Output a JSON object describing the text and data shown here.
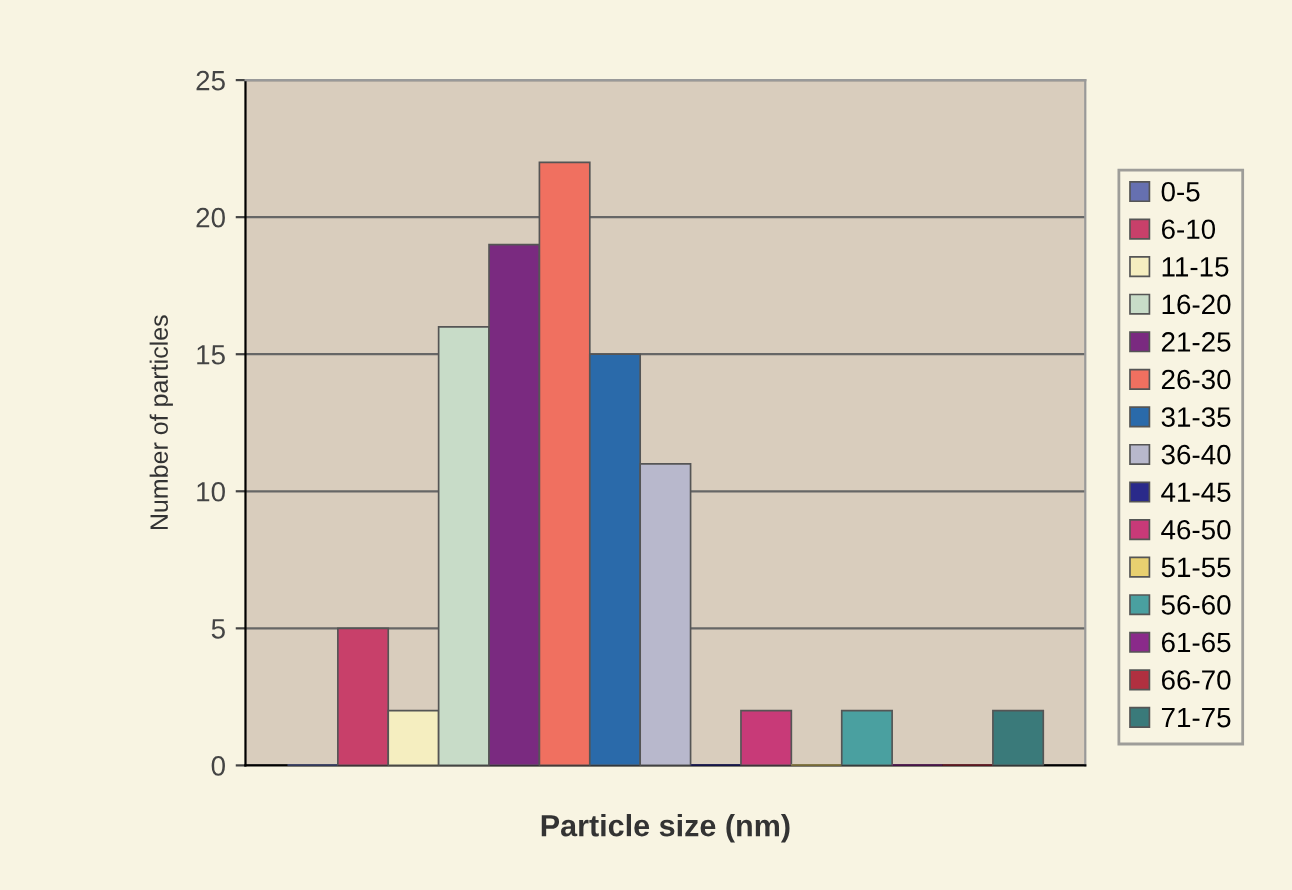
{
  "chart_data": {
    "type": "bar",
    "xlabel": "Particle size (nm)",
    "ylabel": "Number of particles",
    "categories": [
      null
    ],
    "ylim": [
      0,
      25
    ],
    "yticks": [
      0,
      5,
      10,
      15,
      20,
      25
    ],
    "grid": "y",
    "legend": "right",
    "series": [
      {
        "name": "0-5",
        "color": "#6670b0",
        "values": [
          0
        ]
      },
      {
        "name": "6-10",
        "color": "#c8406a",
        "values": [
          5
        ]
      },
      {
        "name": "11-15",
        "color": "#f5eec0",
        "values": [
          2
        ]
      },
      {
        "name": "16-20",
        "color": "#c8dcc8",
        "values": [
          16
        ]
      },
      {
        "name": "21-25",
        "color": "#7a2a80",
        "values": [
          19
        ]
      },
      {
        "name": "26-30",
        "color": "#f07060",
        "values": [
          22
        ]
      },
      {
        "name": "31-35",
        "color": "#2a6aaa",
        "values": [
          15
        ]
      },
      {
        "name": "36-40",
        "color": "#b8b8cc",
        "values": [
          11
        ]
      },
      {
        "name": "41-45",
        "color": "#2a2a8a",
        "values": [
          0
        ]
      },
      {
        "name": "46-50",
        "color": "#c83a78",
        "values": [
          2
        ]
      },
      {
        "name": "51-55",
        "color": "#e8d070",
        "values": [
          0
        ]
      },
      {
        "name": "56-60",
        "color": "#4aa0a0",
        "values": [
          2
        ]
      },
      {
        "name": "61-65",
        "color": "#8a2a8a",
        "values": [
          0
        ]
      },
      {
        "name": "66-70",
        "color": "#b03040",
        "values": [
          0
        ]
      },
      {
        "name": "71-75",
        "color": "#3a7a7a",
        "values": [
          2
        ]
      }
    ]
  }
}
